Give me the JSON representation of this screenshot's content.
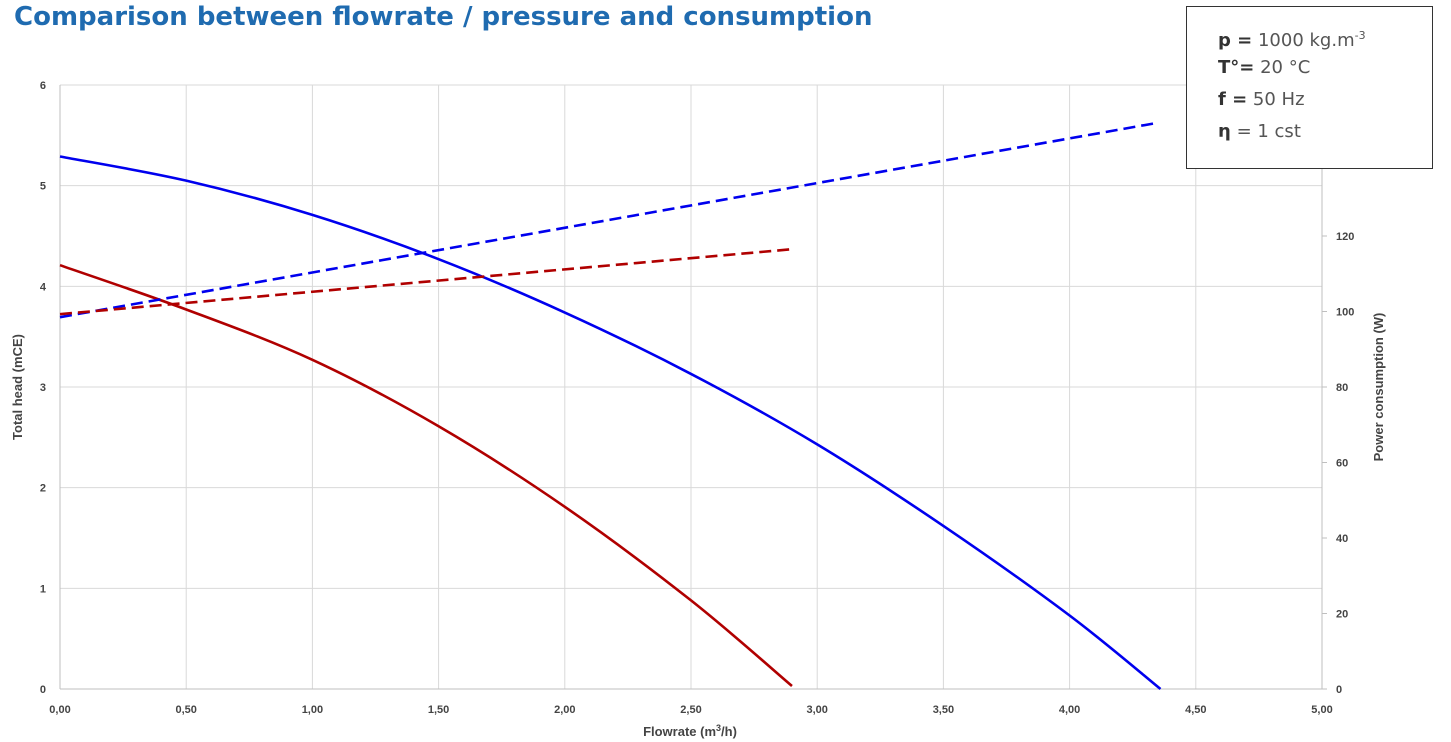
{
  "title": "Comparison between flowrate / pressure and consumption",
  "info": {
    "density_label": "p =",
    "density_value": "1000 kg.m",
    "density_exp": "-3",
    "temp_label": "T°=",
    "temp_value": "20 °C",
    "freq_label": "f =",
    "freq_value": "50 Hz",
    "visc_label": "η",
    "visc_value": "= 1 cst"
  },
  "chart_data": {
    "type": "line",
    "xlabel_text": "Flowrate (m",
    "xlabel_sup": "3",
    "xlabel_tail": "/h)",
    "ylabel": "Total head (mCE)",
    "y2label": "Power consumption (W)",
    "xlim": [
      0,
      5
    ],
    "ylim": [
      0,
      6
    ],
    "y2lim": [
      0,
      160
    ],
    "x_ticks": [
      "0,00",
      "0,50",
      "1,00",
      "1,50",
      "2,00",
      "2,50",
      "3,00",
      "3,50",
      "4,00",
      "4,50",
      "5,00"
    ],
    "y_ticks": [
      "0",
      "1",
      "2",
      "3",
      "4",
      "5",
      "6"
    ],
    "y2_ticks": [
      "0",
      "20",
      "40",
      "60",
      "80",
      "100",
      "120"
    ],
    "grid": true,
    "series": [
      {
        "axis": "left",
        "color": "#0000ee",
        "dash": false,
        "points": [
          [
            0,
            5.29
          ],
          [
            0.5,
            5.05
          ],
          [
            1.0,
            4.71
          ],
          [
            1.5,
            4.27
          ],
          [
            2.0,
            3.74
          ],
          [
            2.5,
            3.13
          ],
          [
            3.0,
            2.43
          ],
          [
            3.5,
            1.62
          ],
          [
            4.0,
            0.73
          ],
          [
            4.36,
            0.0
          ]
        ]
      },
      {
        "axis": "left",
        "color": "#b00000",
        "dash": false,
        "points": [
          [
            0,
            4.21
          ],
          [
            0.5,
            3.77
          ],
          [
            1.0,
            3.27
          ],
          [
            1.5,
            2.61
          ],
          [
            2.0,
            1.81
          ],
          [
            2.5,
            0.88
          ],
          [
            2.9,
            0.03
          ]
        ]
      },
      {
        "axis": "right",
        "color": "#0000ee",
        "dash": true,
        "points": [
          [
            0,
            98.5
          ],
          [
            4.35,
            150.0
          ]
        ]
      },
      {
        "axis": "right",
        "color": "#b00000",
        "dash": true,
        "points": [
          [
            0,
            99.3
          ],
          [
            2.9,
            116.5
          ]
        ]
      }
    ]
  }
}
